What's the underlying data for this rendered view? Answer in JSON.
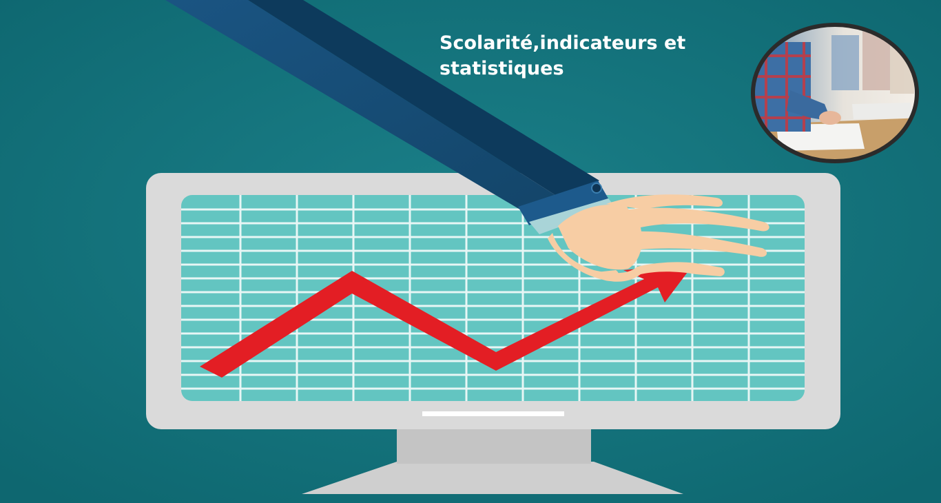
{
  "title": "Scolarité,indicateurs et statistiques",
  "illustration": {
    "subject": "monitor showing a rising trend arrow, pointed at by a hand",
    "icon": "trend-up-arrow-icon",
    "arrow_color": "#e31e24",
    "screen_color": "#63c5c1",
    "monitor_color": "#d8d8d8",
    "sleeve_color": "#174c76",
    "background_color": "#106e78"
  },
  "photo": {
    "subject": "students writing an exam",
    "shape": "circle"
  }
}
